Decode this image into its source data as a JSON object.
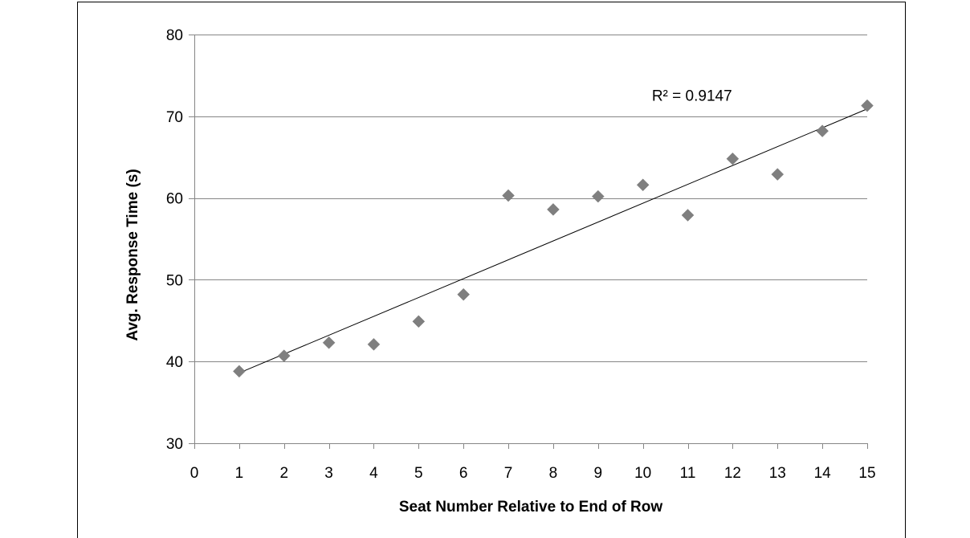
{
  "chart_data": {
    "type": "scatter",
    "title": "",
    "xlabel": "Seat Number Relative to End of Row",
    "ylabel": "Avg. Response Time (s)",
    "xlim": [
      0,
      15
    ],
    "ylim": [
      30,
      80
    ],
    "xticks": [
      0,
      1,
      2,
      3,
      4,
      5,
      6,
      7,
      8,
      9,
      10,
      11,
      12,
      13,
      14,
      15
    ],
    "yticks": [
      30,
      40,
      50,
      60,
      70,
      80
    ],
    "grid": "horizontal",
    "legend": "none",
    "series": [
      {
        "x": [
          1,
          2,
          3,
          4,
          5,
          6,
          7,
          8,
          9,
          10,
          11,
          12,
          13,
          14,
          15
        ],
        "y": [
          38.8,
          40.7,
          42.3,
          42.1,
          44.9,
          48.2,
          60.3,
          58.6,
          60.2,
          61.6,
          57.9,
          64.8,
          62.9,
          68.2,
          71.3
        ],
        "marker": "diamond",
        "color": "#7f7f7f"
      }
    ],
    "trendline": {
      "type": "linear",
      "x": [
        1,
        15
      ],
      "y": [
        38.6,
        70.9
      ],
      "color": "#000000"
    },
    "annotations": [
      {
        "text": "R² = 0.9147",
        "x": 10.2,
        "y": 72.5
      }
    ],
    "colors": {
      "gridline": "#868686",
      "frame": "#000000"
    }
  }
}
